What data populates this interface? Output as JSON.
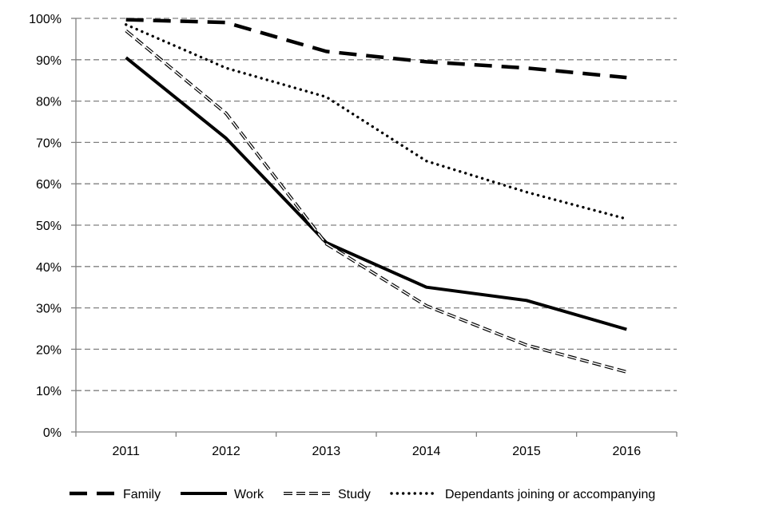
{
  "chart_data": {
    "type": "line",
    "title": "",
    "xlabel": "",
    "ylabel": "",
    "categories": [
      "2011",
      "2012",
      "2013",
      "2014",
      "2015",
      "2016"
    ],
    "ylim": [
      0,
      100
    ],
    "y_ticks": [
      0,
      10,
      20,
      30,
      40,
      50,
      60,
      70,
      80,
      90,
      100
    ],
    "y_tick_labels": [
      "0%",
      "10%",
      "20%",
      "30%",
      "40%",
      "50%",
      "60%",
      "70%",
      "80%",
      "90%",
      "100%"
    ],
    "grid": "horizontal dashed",
    "legend_position": "bottom",
    "series": [
      {
        "name": "Family",
        "style": "long-dash",
        "color": "#000000",
        "values": [
          99.7,
          99.0,
          92.0,
          89.5,
          88.0,
          85.7
        ]
      },
      {
        "name": "Work",
        "style": "solid",
        "color": "#000000",
        "values": [
          90.5,
          71.0,
          45.8,
          35.0,
          31.8,
          24.8
        ]
      },
      {
        "name": "Study",
        "style": "double-dash-outline",
        "color": "#000000",
        "values": [
          97.0,
          77.0,
          45.5,
          30.5,
          21.0,
          14.5
        ]
      },
      {
        "name": "Dependants joining or accompanying",
        "style": "dotted",
        "color": "#000000",
        "values": [
          98.5,
          88.0,
          81.0,
          65.5,
          58.0,
          51.5
        ]
      }
    ]
  }
}
